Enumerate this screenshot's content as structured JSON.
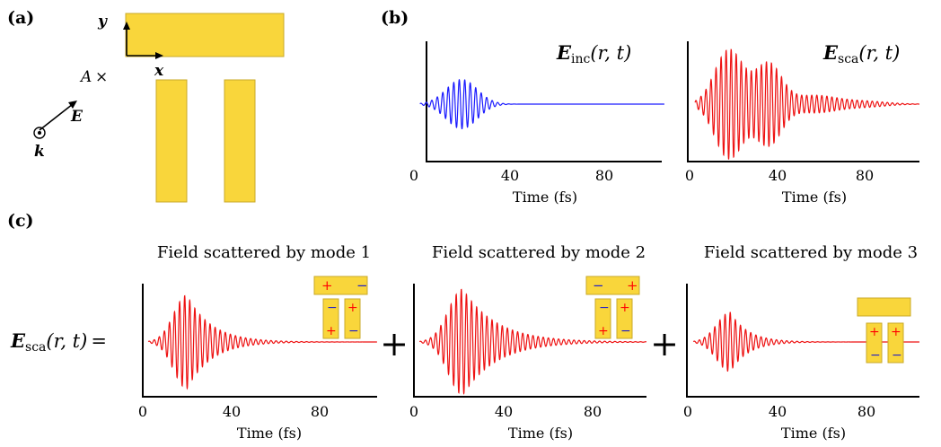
{
  "panels": {
    "a": {
      "label": "(a)",
      "axis_y": "y",
      "axis_x": "x",
      "point_label": "A",
      "point_marker": "×",
      "e_label": "E",
      "k_label": "k",
      "colors": {
        "gold": "#f9d63b",
        "gold_edge": "#c9a92a"
      }
    },
    "b": {
      "label": "(b)",
      "left_title": {
        "main": "E",
        "sub": "inc",
        "args": "(r, t)"
      },
      "right_title": {
        "main": "E",
        "sub": "sca",
        "args": "(r, t)"
      },
      "xlabel": "Time (fs)",
      "xticks": [
        "0",
        "40",
        "80"
      ]
    },
    "c": {
      "label": "(c)",
      "lhs": {
        "main": "E",
        "sub": "sca",
        "args": "(r, t)",
        "equals": "="
      },
      "plus": "+",
      "titles": [
        "Field scattered by mode 1",
        "Field scattered by mode 2",
        "Field scattered by mode 3"
      ],
      "xlabel": "Time (fs)",
      "xticks": [
        "0",
        "40",
        "80"
      ],
      "charges": [
        "+",
        "−"
      ]
    }
  },
  "chart_data": [
    {
      "type": "line",
      "panel": "b-left",
      "title": "E_inc(r,t)",
      "xlabel": "Time (fs)",
      "xlim": [
        0,
        110
      ],
      "x_ticks": [
        0,
        40,
        80
      ],
      "series": [
        {
          "kind": "wave-packet",
          "color": "#1a1aff",
          "center_fs": 20,
          "width_fs": 6.5,
          "amplitude": 0.25,
          "period_fs": 2.3
        }
      ]
    },
    {
      "type": "line",
      "panel": "b-right",
      "title": "E_sca(r,t)",
      "xlabel": "Time (fs)",
      "xlim": [
        0,
        110
      ],
      "x_ticks": [
        0,
        40,
        80
      ],
      "series": [
        {
          "kind": "multi-packet",
          "color": "#ee1111",
          "components": [
            {
              "center_fs": 18,
              "width_fs": 6.5,
              "amplitude": 0.95,
              "period_fs": 2.3
            },
            {
              "center_fs": 36,
              "width_fs": 6.0,
              "amplitude": 0.7,
              "period_fs": 2.3
            },
            {
              "center_fs": 57,
              "width_fs": 10,
              "amplitude": 0.15,
              "period_fs": 2.3
            },
            {
              "center_fs": 80,
              "width_fs": 10,
              "amplitude": 0.05,
              "period_fs": 2.3
            }
          ]
        }
      ]
    },
    {
      "type": "line",
      "panel": "c-1",
      "title": "Field scattered by mode 1",
      "xlabel": "Time (fs)",
      "xlim": [
        0,
        110
      ],
      "x_ticks": [
        0,
        40,
        80
      ],
      "series": [
        {
          "kind": "decaying-packet",
          "color": "#ee1111",
          "rise_center_fs": 20,
          "rise_width_fs": 6,
          "decay_fs": 11,
          "amplitude": 0.9,
          "period_fs": 2.3
        }
      ]
    },
    {
      "type": "line",
      "panel": "c-2",
      "title": "Field scattered by mode 2",
      "xlabel": "Time (fs)",
      "xlim": [
        0,
        110
      ],
      "x_ticks": [
        0,
        40,
        80
      ],
      "series": [
        {
          "kind": "decaying-packet",
          "color": "#ee1111",
          "rise_center_fs": 22,
          "rise_width_fs": 6.5,
          "decay_fs": 15,
          "amplitude": 1.0,
          "period_fs": 2.3
        }
      ]
    },
    {
      "type": "line",
      "panel": "c-3",
      "title": "Field scattered by mode 3",
      "xlabel": "Time (fs)",
      "xlim": [
        0,
        110
      ],
      "x_ticks": [
        0,
        40,
        80
      ],
      "series": [
        {
          "kind": "decaying-packet",
          "color": "#ee1111",
          "rise_center_fs": 19,
          "rise_width_fs": 6,
          "decay_fs": 8,
          "amplitude": 0.55,
          "period_fs": 2.3
        }
      ]
    }
  ]
}
